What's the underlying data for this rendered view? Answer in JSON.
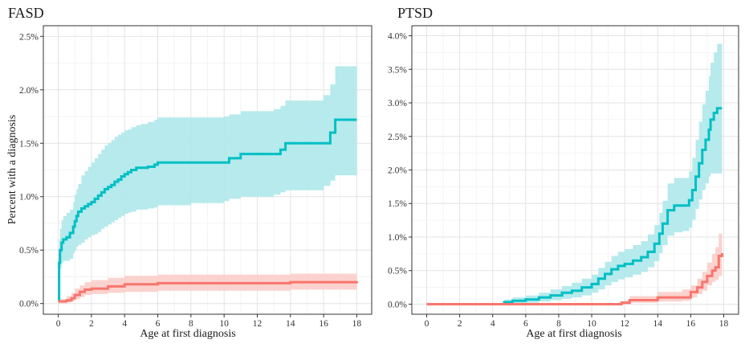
{
  "colors": {
    "cyan_line": "#00BFC4",
    "cyan_band": "#AEE8EA",
    "red_line": "#F8766D",
    "red_band": "#FBCDC9"
  },
  "chart_data": [
    {
      "type": "line",
      "title": "FASD",
      "xlabel": "Age at first diagnosis",
      "ylabel": "Percent with a diagnosis",
      "xlim": [
        -0.9,
        18.9
      ],
      "ylim": [
        -0.1,
        2.6
      ],
      "x_ticks": [
        0,
        2,
        4,
        6,
        8,
        10,
        12,
        14,
        16,
        18
      ],
      "x_tick_labels": [
        "0",
        "2",
        "4",
        "6",
        "8",
        "10",
        "12",
        "14",
        "16",
        "18"
      ],
      "y_ticks": [
        0,
        0.5,
        1.0,
        1.5,
        2.0,
        2.5
      ],
      "y_tick_labels": [
        "0.0%",
        "0.5%",
        "1.0%",
        "1.5%",
        "2.0%",
        "2.5%"
      ],
      "grid": true,
      "series": [
        {
          "color_key": "cyan",
          "x": [
            0,
            0.05,
            0.1,
            0.2,
            0.3,
            0.5,
            0.7,
            0.9,
            1.0,
            1.1,
            1.2,
            1.4,
            1.6,
            1.8,
            2.0,
            2.2,
            2.4,
            2.6,
            2.8,
            3.0,
            3.2,
            3.4,
            3.6,
            3.8,
            4.0,
            4.2,
            4.4,
            4.7,
            5.0,
            5.4,
            5.8,
            6.0,
            8.0,
            10.0,
            10.3,
            11.0,
            13.0,
            13.4,
            13.7,
            16.0,
            16.4,
            16.7,
            18.0
          ],
          "y": [
            0.03,
            0.38,
            0.5,
            0.57,
            0.6,
            0.62,
            0.66,
            0.72,
            0.77,
            0.82,
            0.86,
            0.89,
            0.91,
            0.93,
            0.95,
            0.98,
            1.01,
            1.04,
            1.07,
            1.09,
            1.11,
            1.14,
            1.16,
            1.19,
            1.21,
            1.23,
            1.25,
            1.27,
            1.27,
            1.28,
            1.3,
            1.32,
            1.32,
            1.32,
            1.36,
            1.4,
            1.4,
            1.44,
            1.5,
            1.5,
            1.6,
            1.72,
            1.72
          ],
          "lower": [
            0.0,
            0.25,
            0.33,
            0.38,
            0.4,
            0.4,
            0.42,
            0.47,
            0.5,
            0.53,
            0.55,
            0.57,
            0.6,
            0.62,
            0.64,
            0.65,
            0.67,
            0.7,
            0.72,
            0.74,
            0.76,
            0.78,
            0.8,
            0.82,
            0.84,
            0.85,
            0.86,
            0.88,
            0.88,
            0.89,
            0.9,
            0.92,
            0.94,
            0.96,
            0.98,
            1.0,
            1.02,
            1.04,
            1.06,
            1.1,
            1.15,
            1.2,
            1.23
          ],
          "upper": [
            0.05,
            0.6,
            0.7,
            0.78,
            0.82,
            0.85,
            0.88,
            0.95,
            1.02,
            1.07,
            1.12,
            1.2,
            1.24,
            1.28,
            1.32,
            1.36,
            1.4,
            1.44,
            1.48,
            1.5,
            1.53,
            1.56,
            1.58,
            1.6,
            1.62,
            1.63,
            1.65,
            1.67,
            1.68,
            1.7,
            1.72,
            1.74,
            1.74,
            1.75,
            1.77,
            1.8,
            1.82,
            1.85,
            1.9,
            1.95,
            2.05,
            2.22,
            2.23
          ]
        },
        {
          "color_key": "red",
          "x": [
            0,
            0.2,
            0.5,
            0.8,
            1.0,
            1.3,
            1.6,
            2.0,
            3.0,
            4.0,
            6.0,
            14.0,
            18.0
          ],
          "y": [
            0.02,
            0.02,
            0.03,
            0.05,
            0.08,
            0.11,
            0.13,
            0.14,
            0.16,
            0.18,
            0.19,
            0.2,
            0.21
          ],
          "lower": [
            0.0,
            0.0,
            0.01,
            0.02,
            0.04,
            0.06,
            0.08,
            0.09,
            0.1,
            0.11,
            0.12,
            0.13,
            0.13
          ],
          "upper": [
            0.04,
            0.04,
            0.07,
            0.1,
            0.14,
            0.17,
            0.2,
            0.22,
            0.24,
            0.26,
            0.27,
            0.28,
            0.32
          ]
        }
      ]
    },
    {
      "type": "line",
      "title": "PTSD",
      "xlabel": "Age at first diagnosis",
      "ylabel": "",
      "xlim": [
        -0.9,
        18.9
      ],
      "ylim": [
        -0.15,
        4.15
      ],
      "x_ticks": [
        0,
        2,
        4,
        6,
        8,
        10,
        12,
        14,
        16,
        18
      ],
      "x_tick_labels": [
        "0",
        "2",
        "4",
        "6",
        "8",
        "10",
        "12",
        "14",
        "16",
        "18"
      ],
      "y_ticks": [
        0,
        0.5,
        1.0,
        1.5,
        2.0,
        2.5,
        3.0,
        3.5,
        4.0
      ],
      "y_tick_labels": [
        "0.0%",
        "0.5%",
        "1.0%",
        "1.5%",
        "2.0%",
        "2.5%",
        "3.0%",
        "3.5%",
        "4.0%"
      ],
      "grid": true,
      "series": [
        {
          "color_key": "cyan",
          "x": [
            0,
            4.7,
            5.2,
            6.0,
            6.8,
            7.5,
            8.2,
            8.8,
            9.4,
            10.0,
            10.4,
            10.8,
            11.2,
            11.6,
            12.0,
            12.5,
            13.0,
            13.4,
            13.8,
            14.1,
            14.3,
            14.6,
            15.0,
            15.5,
            15.9,
            16.1,
            16.3,
            16.5,
            16.7,
            16.9,
            17.1,
            17.2,
            17.4,
            17.6,
            17.9
          ],
          "y": [
            0.0,
            0.03,
            0.05,
            0.07,
            0.1,
            0.13,
            0.17,
            0.2,
            0.25,
            0.3,
            0.38,
            0.45,
            0.52,
            0.57,
            0.6,
            0.65,
            0.7,
            0.78,
            0.9,
            1.05,
            1.2,
            1.4,
            1.47,
            1.47,
            1.55,
            1.7,
            1.9,
            2.1,
            2.3,
            2.45,
            2.6,
            2.75,
            2.85,
            2.92,
            2.92
          ],
          "lower": [
            0.0,
            0.0,
            0.01,
            0.02,
            0.04,
            0.06,
            0.08,
            0.1,
            0.13,
            0.17,
            0.22,
            0.28,
            0.33,
            0.37,
            0.4,
            0.44,
            0.48,
            0.55,
            0.64,
            0.76,
            0.88,
            1.02,
            1.07,
            1.09,
            1.14,
            1.26,
            1.42,
            1.56,
            1.7,
            1.8,
            1.9,
            1.95,
            1.95,
            1.95,
            1.95
          ],
          "upper": [
            0.0,
            0.07,
            0.1,
            0.13,
            0.17,
            0.22,
            0.27,
            0.32,
            0.38,
            0.44,
            0.54,
            0.63,
            0.72,
            0.78,
            0.82,
            0.88,
            0.94,
            1.04,
            1.18,
            1.36,
            1.54,
            1.8,
            1.88,
            1.88,
            1.98,
            2.18,
            2.45,
            2.72,
            2.98,
            3.18,
            3.4,
            3.6,
            3.75,
            3.88,
            3.88
          ]
        },
        {
          "color_key": "red",
          "x": [
            0,
            11.8,
            12.3,
            14.0,
            15.5,
            16.0,
            16.4,
            16.7,
            17.0,
            17.3,
            17.5,
            17.7,
            17.9
          ],
          "y": [
            0.0,
            0.02,
            0.06,
            0.1,
            0.1,
            0.18,
            0.25,
            0.33,
            0.42,
            0.5,
            0.55,
            0.72,
            0.76
          ],
          "lower": [
            0.0,
            0.0,
            0.02,
            0.04,
            0.05,
            0.1,
            0.15,
            0.2,
            0.28,
            0.33,
            0.36,
            0.42,
            0.45
          ],
          "upper": [
            0.0,
            0.05,
            0.12,
            0.18,
            0.22,
            0.28,
            0.38,
            0.48,
            0.62,
            0.75,
            0.85,
            1.05,
            1.2
          ]
        }
      ]
    }
  ]
}
